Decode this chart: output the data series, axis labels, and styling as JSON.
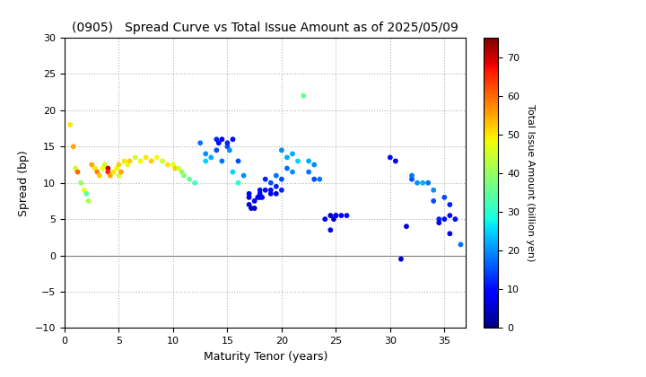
{
  "title": "(0905)   Spread Curve vs Total Issue Amount as of 2025/05/09",
  "xlabel": "Maturity Tenor (years)",
  "ylabel": "Spread (bp)",
  "colorbar_label": "Total Issue Amount (billion yen)",
  "xlim": [
    0,
    37
  ],
  "ylim": [
    -10,
    30
  ],
  "xticks": [
    0,
    5,
    10,
    15,
    20,
    25,
    30,
    35
  ],
  "yticks": [
    -10,
    -5,
    0,
    5,
    10,
    15,
    20,
    25,
    30
  ],
  "colorbar_ticks": [
    0,
    10,
    20,
    30,
    40,
    50,
    60,
    70
  ],
  "colormap": "jet",
  "vmin": 0,
  "vmax": 75,
  "points": [
    [
      0.5,
      18.0,
      50
    ],
    [
      0.8,
      15.0,
      55
    ],
    [
      1.0,
      12.0,
      45
    ],
    [
      1.2,
      11.5,
      60
    ],
    [
      1.5,
      10.0,
      40
    ],
    [
      1.8,
      9.0,
      48
    ],
    [
      2.0,
      8.5,
      35
    ],
    [
      2.2,
      7.5,
      42
    ],
    [
      2.5,
      12.5,
      55
    ],
    [
      2.8,
      12.0,
      50
    ],
    [
      3.0,
      11.5,
      58
    ],
    [
      3.2,
      11.0,
      52
    ],
    [
      3.5,
      12.0,
      48
    ],
    [
      3.7,
      12.5,
      45
    ],
    [
      4.0,
      12.0,
      70
    ],
    [
      4.0,
      11.5,
      65
    ],
    [
      4.2,
      11.0,
      55
    ],
    [
      4.5,
      11.5,
      50
    ],
    [
      4.8,
      12.0,
      48
    ],
    [
      5.0,
      12.5,
      52
    ],
    [
      5.0,
      11.0,
      45
    ],
    [
      5.2,
      11.5,
      55
    ],
    [
      5.5,
      13.0,
      50
    ],
    [
      5.8,
      12.5,
      48
    ],
    [
      6.0,
      13.0,
      52
    ],
    [
      6.5,
      13.5,
      45
    ],
    [
      7.0,
      13.0,
      48
    ],
    [
      7.5,
      13.5,
      50
    ],
    [
      8.0,
      13.0,
      52
    ],
    [
      8.5,
      13.5,
      48
    ],
    [
      9.0,
      13.0,
      45
    ],
    [
      9.5,
      12.5,
      50
    ],
    [
      10.0,
      12.5,
      48
    ],
    [
      10.2,
      12.0,
      52
    ],
    [
      10.5,
      12.0,
      45
    ],
    [
      10.8,
      11.5,
      40
    ],
    [
      11.0,
      11.0,
      38
    ],
    [
      11.5,
      10.5,
      35
    ],
    [
      12.0,
      10.0,
      32
    ],
    [
      12.5,
      15.5,
      18
    ],
    [
      13.0,
      14.0,
      20
    ],
    [
      13.0,
      13.0,
      25
    ],
    [
      13.5,
      13.5,
      22
    ],
    [
      14.0,
      14.5,
      15
    ],
    [
      14.0,
      16.0,
      12
    ],
    [
      14.2,
      15.5,
      10
    ],
    [
      14.5,
      16.0,
      8
    ],
    [
      14.5,
      13.0,
      18
    ],
    [
      15.0,
      15.0,
      15
    ],
    [
      15.0,
      15.5,
      12
    ],
    [
      15.2,
      14.5,
      20
    ],
    [
      15.5,
      16.0,
      10
    ],
    [
      15.5,
      11.5,
      25
    ],
    [
      16.0,
      10.0,
      30
    ],
    [
      16.0,
      13.0,
      15
    ],
    [
      16.5,
      11.0,
      20
    ],
    [
      17.0,
      8.5,
      8
    ],
    [
      17.0,
      8.0,
      6
    ],
    [
      17.0,
      7.0,
      5
    ],
    [
      17.2,
      6.5,
      5
    ],
    [
      17.5,
      6.5,
      5
    ],
    [
      17.5,
      7.5,
      8
    ],
    [
      17.8,
      8.0,
      8
    ],
    [
      18.0,
      8.0,
      8
    ],
    [
      18.0,
      8.5,
      10
    ],
    [
      18.0,
      9.0,
      10
    ],
    [
      18.2,
      8.0,
      8
    ],
    [
      18.5,
      9.0,
      10
    ],
    [
      18.5,
      10.5,
      12
    ],
    [
      19.0,
      9.0,
      10
    ],
    [
      19.0,
      10.0,
      15
    ],
    [
      19.0,
      8.5,
      8
    ],
    [
      19.5,
      8.5,
      8
    ],
    [
      19.5,
      9.5,
      12
    ],
    [
      19.5,
      11.0,
      18
    ],
    [
      20.0,
      9.0,
      12
    ],
    [
      20.0,
      10.5,
      15
    ],
    [
      20.0,
      14.5,
      20
    ],
    [
      20.5,
      13.5,
      22
    ],
    [
      20.5,
      12.0,
      18
    ],
    [
      21.0,
      11.5,
      20
    ],
    [
      21.0,
      14.0,
      22
    ],
    [
      21.5,
      13.0,
      25
    ],
    [
      22.0,
      22.0,
      35
    ],
    [
      22.5,
      13.0,
      22
    ],
    [
      22.5,
      11.5,
      18
    ],
    [
      23.0,
      12.5,
      20
    ],
    [
      23.0,
      10.5,
      15
    ],
    [
      23.5,
      10.5,
      18
    ],
    [
      24.0,
      5.0,
      8
    ],
    [
      24.5,
      5.5,
      5
    ],
    [
      24.5,
      3.5,
      8
    ],
    [
      24.8,
      5.0,
      5
    ],
    [
      25.0,
      5.5,
      5
    ],
    [
      25.0,
      5.5,
      8
    ],
    [
      25.5,
      5.5,
      8
    ],
    [
      26.0,
      5.5,
      10
    ],
    [
      30.0,
      13.5,
      10
    ],
    [
      30.5,
      13.0,
      8
    ],
    [
      31.0,
      -0.5,
      5
    ],
    [
      31.5,
      4.0,
      5
    ],
    [
      32.0,
      10.5,
      15
    ],
    [
      32.0,
      11.0,
      18
    ],
    [
      32.5,
      10.0,
      20
    ],
    [
      33.0,
      10.0,
      22
    ],
    [
      33.5,
      10.0,
      18
    ],
    [
      34.0,
      9.0,
      20
    ],
    [
      34.0,
      7.5,
      15
    ],
    [
      34.5,
      5.0,
      12
    ],
    [
      34.5,
      4.5,
      8
    ],
    [
      35.0,
      5.0,
      10
    ],
    [
      35.0,
      8.0,
      15
    ],
    [
      35.5,
      3.0,
      8
    ],
    [
      35.5,
      5.5,
      10
    ],
    [
      35.5,
      7.0,
      12
    ],
    [
      36.0,
      5.0,
      10
    ],
    [
      36.5,
      1.5,
      18
    ]
  ]
}
